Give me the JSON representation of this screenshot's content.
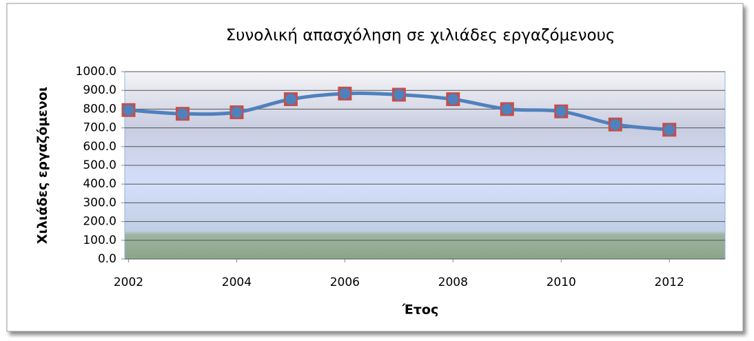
{
  "chart_data": {
    "type": "line",
    "title": "Συνολική απασχόληση σε χιλιάδες εργαζόμενους",
    "x_label": "Έτος",
    "y_label": "Χιλιάδες εργαζόμενοι",
    "x": [
      2002,
      2003,
      2004,
      2005,
      2006,
      2007,
      2008,
      2009,
      2010,
      2011,
      2012
    ],
    "series": [
      {
        "name": "Χιλιάδες εργαζόμενοι",
        "color": "#4f81bd",
        "marker_color": "#c0504d",
        "values": [
          795,
          775,
          783,
          853,
          883,
          877,
          853,
          800,
          788,
          718,
          690
        ]
      }
    ],
    "xlim": [
      2001.93,
      2013.03
    ],
    "xticks": [
      2002,
      2004,
      2006,
      2008,
      2010,
      2012
    ],
    "ylim": [
      0,
      1000
    ],
    "yticks": [
      {
        "value": 0,
        "label": "0.0"
      },
      {
        "value": 100,
        "label": "100.0"
      },
      {
        "value": 200,
        "label": "200.0"
      },
      {
        "value": 300,
        "label": "300.0"
      },
      {
        "value": 400,
        "label": "400.0"
      },
      {
        "value": 500,
        "label": "500.0"
      },
      {
        "value": 600,
        "label": "600.0"
      },
      {
        "value": 700,
        "label": "700.0"
      },
      {
        "value": 800,
        "label": "800.0"
      },
      {
        "value": 900,
        "label": "900.0"
      },
      {
        "value": 1000,
        "label": "1000.0"
      }
    ],
    "grid": true,
    "smooth": true
  }
}
